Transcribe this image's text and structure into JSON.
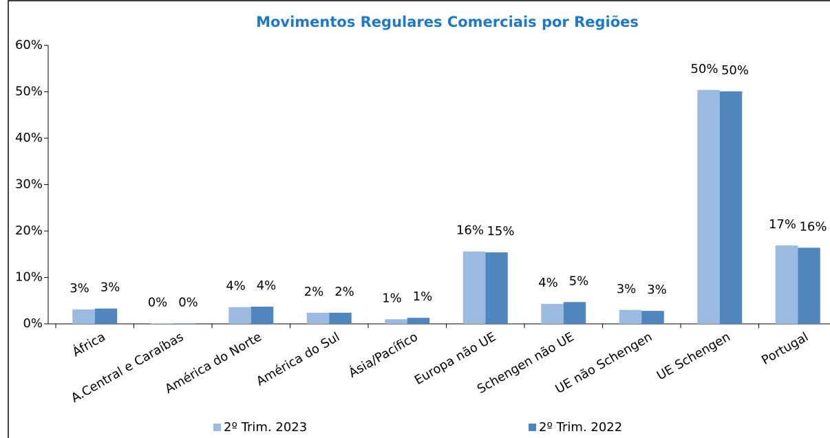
{
  "chart_data": {
    "type": "bar",
    "title": "Movimentos Regulares Comerciais por Regiões",
    "categories": [
      "África",
      "A.Central e Caraíbas",
      "América do Norte",
      "América do Sul",
      "Ásia/Pacífico",
      "Europa não UE",
      "Schengen não UE",
      "UE não Schengen",
      "UE Schengen",
      "Portugal"
    ],
    "series": [
      {
        "name": "2º Trim. 2023",
        "color": "#9bbbe0",
        "values": [
          3.1,
          0.1,
          3.6,
          2.4,
          1.0,
          15.6,
          4.3,
          3.0,
          50.4,
          16.9
        ],
        "value_labels": [
          "3%",
          "0%",
          "4%",
          "2%",
          "1%",
          "16%",
          "4%",
          "3%",
          "50%",
          "17%"
        ]
      },
      {
        "name": "2º Trim. 2022",
        "color": "#4f86bd",
        "values": [
          3.3,
          0.1,
          3.7,
          2.4,
          1.3,
          15.4,
          4.7,
          2.8,
          50.1,
          16.4
        ],
        "value_labels": [
          "3%",
          "0%",
          "4%",
          "2%",
          "1%",
          "15%",
          "5%",
          "3%",
          "50%",
          "16%"
        ]
      }
    ],
    "ylim": [
      0,
      60
    ],
    "yticks": [
      {
        "value": 0,
        "label": "0%"
      },
      {
        "value": 10,
        "label": "10%"
      },
      {
        "value": 20,
        "label": "20%"
      },
      {
        "value": 30,
        "label": "30%"
      },
      {
        "value": 40,
        "label": "40%"
      },
      {
        "value": 50,
        "label": "50%"
      },
      {
        "value": 60,
        "label": "60%"
      }
    ],
    "grid": false,
    "legend": "bottom"
  }
}
